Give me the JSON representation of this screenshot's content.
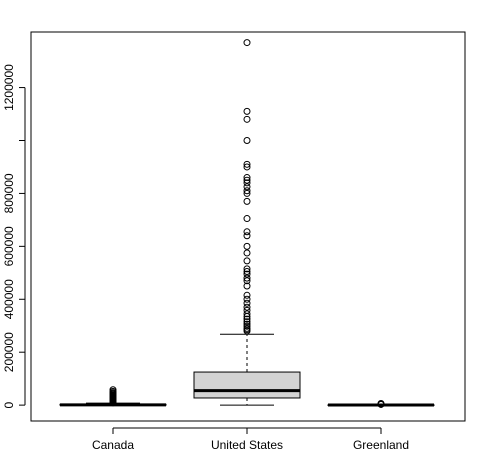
{
  "chart_data": {
    "type": "boxplot",
    "title": "",
    "xlabel": "",
    "ylabel": "",
    "categories": [
      "Canada",
      "United States",
      "Greenland"
    ],
    "ylim": [
      -60000,
      1410000
    ],
    "y_ticks": [
      0,
      200000,
      400000,
      600000,
      800000,
      1000000,
      1200000
    ],
    "y_tick_labels": [
      "0",
      "200000",
      "400000",
      "600000",
      "800000",
      "",
      "1200000"
    ],
    "grid": false,
    "legend": "none",
    "box_fill": "#d3d3d3",
    "line_color": "#000000",
    "boxes": [
      {
        "category": "Canada",
        "whisker_low": 0,
        "q1": 0,
        "median": 1000,
        "q3": 3000,
        "whisker_high": 7500,
        "outliers": [
          9000,
          11000,
          13000,
          15000,
          17000,
          19000,
          21000,
          23000,
          25000,
          27000,
          29000,
          31000,
          33000,
          35000,
          38000,
          41000,
          44000,
          47000,
          52000,
          58000
        ]
      },
      {
        "category": "United States",
        "whisker_low": 0,
        "q1": 27000,
        "median": 55000,
        "q3": 125000,
        "whisker_high": 268000,
        "outliers": [
          280000,
          285000,
          290000,
          298000,
          306000,
          315000,
          325000,
          335000,
          345000,
          358000,
          370000,
          385000,
          400000,
          415000,
          450000,
          470000,
          480000,
          495000,
          505000,
          515000,
          545000,
          575000,
          600000,
          640000,
          655000,
          705000,
          770000,
          800000,
          810000,
          825000,
          840000,
          850000,
          860000,
          900000,
          910000,
          1000000,
          1080000,
          1110000,
          1370000
        ]
      },
      {
        "category": "Greenland",
        "whisker_low": 0,
        "q1": 0,
        "median": 300,
        "q3": 800,
        "whisker_high": 1500,
        "outliers": [
          2500,
          4000,
          6000
        ]
      }
    ]
  }
}
